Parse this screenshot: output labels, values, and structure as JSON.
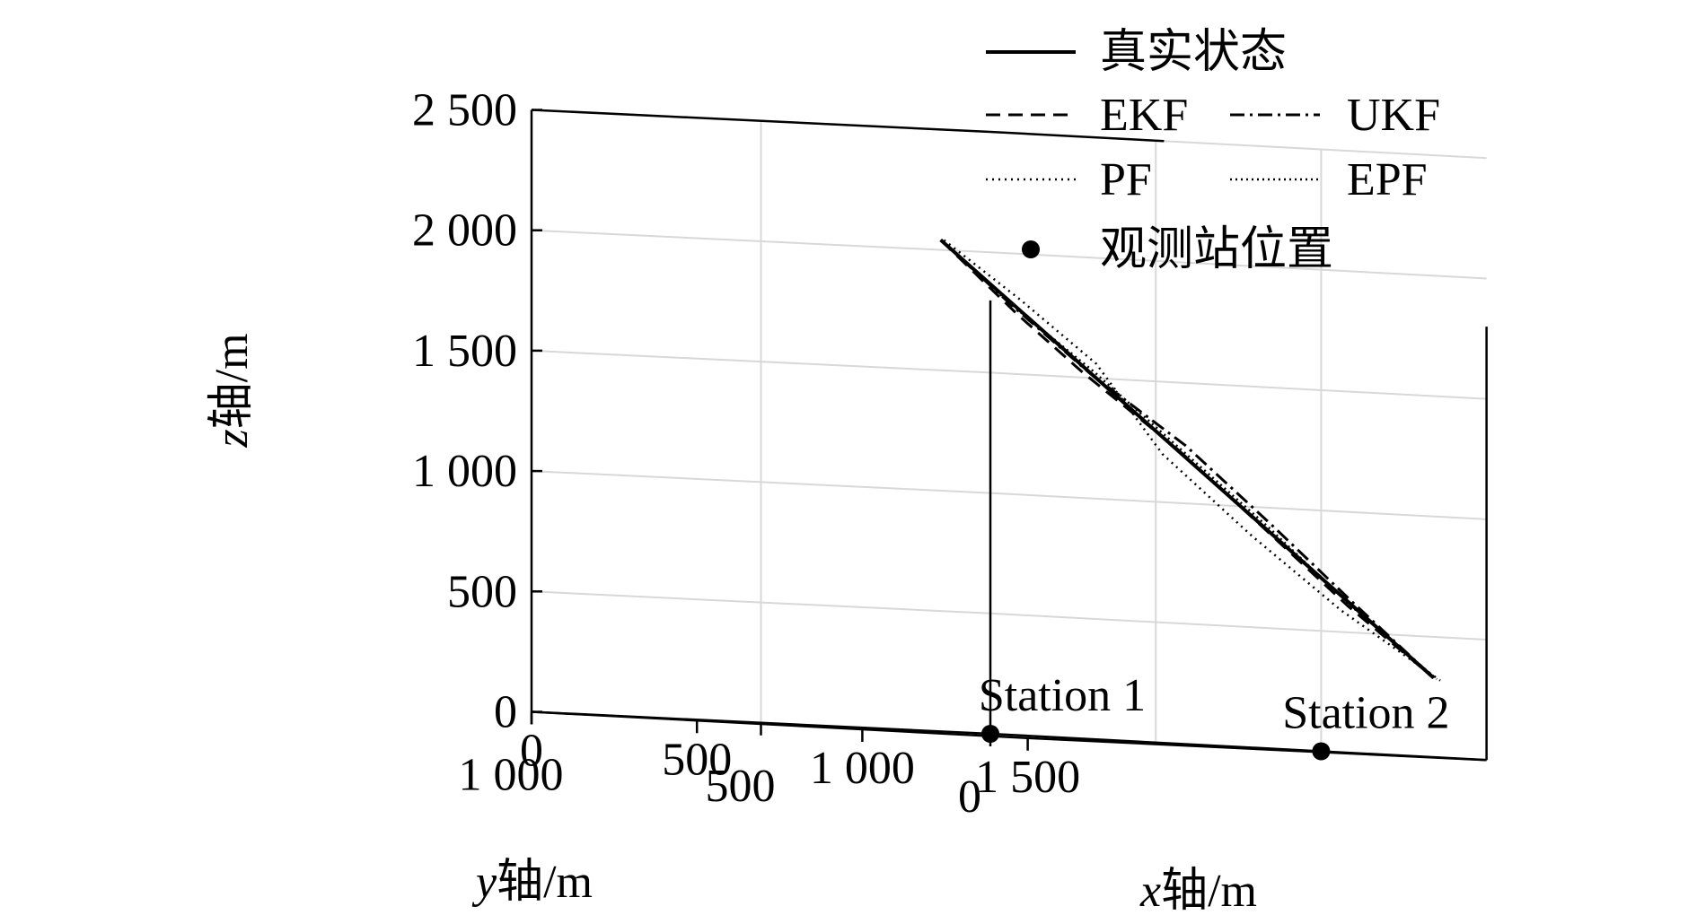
{
  "chart_data": {
    "type": "line3d",
    "axes": {
      "x": {
        "label_var": "x",
        "label_rest": "轴/m",
        "ticks": [
          0,
          500,
          1000,
          1500
        ],
        "tick_labels": [
          "0",
          "500",
          "1 000",
          "1 500"
        ],
        "range": [
          0,
          1500
        ]
      },
      "y": {
        "label_var": "y",
        "label_rest": "轴/m",
        "ticks": [
          0,
          500,
          1000
        ],
        "tick_labels": [
          "0",
          "500",
          "1 000"
        ],
        "range": [
          0,
          1000
        ]
      },
      "z": {
        "label_var": "z",
        "label_rest": "轴/m",
        "ticks": [
          0,
          500,
          1000,
          1500,
          2000,
          2500
        ],
        "tick_labels": [
          "0",
          "500",
          "1 000",
          "1 500",
          "2 000",
          "2 500"
        ],
        "range": [
          0,
          2500
        ]
      }
    },
    "grid": true,
    "legend": {
      "placement": "top-right",
      "entries": [
        {
          "label": "真实状态",
          "style": "solid"
        },
        {
          "label": "EKF",
          "style": "dashed"
        },
        {
          "label": "UKF",
          "style": "dashdot"
        },
        {
          "label": "PF",
          "style": "dotted"
        },
        {
          "label": "EPF",
          "style": "dotted-marker"
        },
        {
          "label": "观测站位置",
          "style": "marker"
        }
      ]
    },
    "series": [
      {
        "name": "真实状态",
        "style": "solid",
        "x": [
          -150,
          1340
        ],
        "y": [
          0,
          0
        ],
        "z": [
          2040,
          330
        ]
      },
      {
        "name": "EKF",
        "style": "dashed",
        "x": [
          -150,
          80,
          280,
          560,
          830,
          1080,
          1340
        ],
        "y": [
          0,
          0,
          0,
          0,
          0,
          0,
          0
        ],
        "z": [
          2040,
          1750,
          1520,
          1230,
          910,
          610,
          330
        ]
      },
      {
        "name": "UKF",
        "style": "dashdot",
        "x": [
          -150,
          60,
          300,
          590,
          850,
          1100,
          1340
        ],
        "y": [
          0,
          0,
          0,
          0,
          0,
          0,
          0
        ],
        "z": [
          2040,
          1790,
          1520,
          1240,
          930,
          620,
          330
        ]
      },
      {
        "name": "PF",
        "style": "dotted",
        "x": [
          -140,
          90,
          320,
          520,
          790,
          1060,
          1360
        ],
        "y": [
          0,
          0,
          0,
          0,
          0,
          0,
          0
        ],
        "z": [
          2040,
          1810,
          1560,
          1200,
          880,
          590,
          320
        ]
      },
      {
        "name": "EPF",
        "style": "dotted-marker",
        "x": [
          -150,
          70,
          310,
          570,
          840,
          1090,
          1350
        ],
        "y": [
          0,
          0,
          0,
          0,
          0,
          0,
          0
        ],
        "z": [
          2040,
          1780,
          1530,
          1230,
          920,
          610,
          325
        ]
      }
    ],
    "stations": [
      {
        "label": "Station 1",
        "x": 0,
        "y": 0,
        "z": 0
      },
      {
        "label": "Station 2",
        "x": 1000,
        "y": 0,
        "z": 0
      }
    ]
  }
}
